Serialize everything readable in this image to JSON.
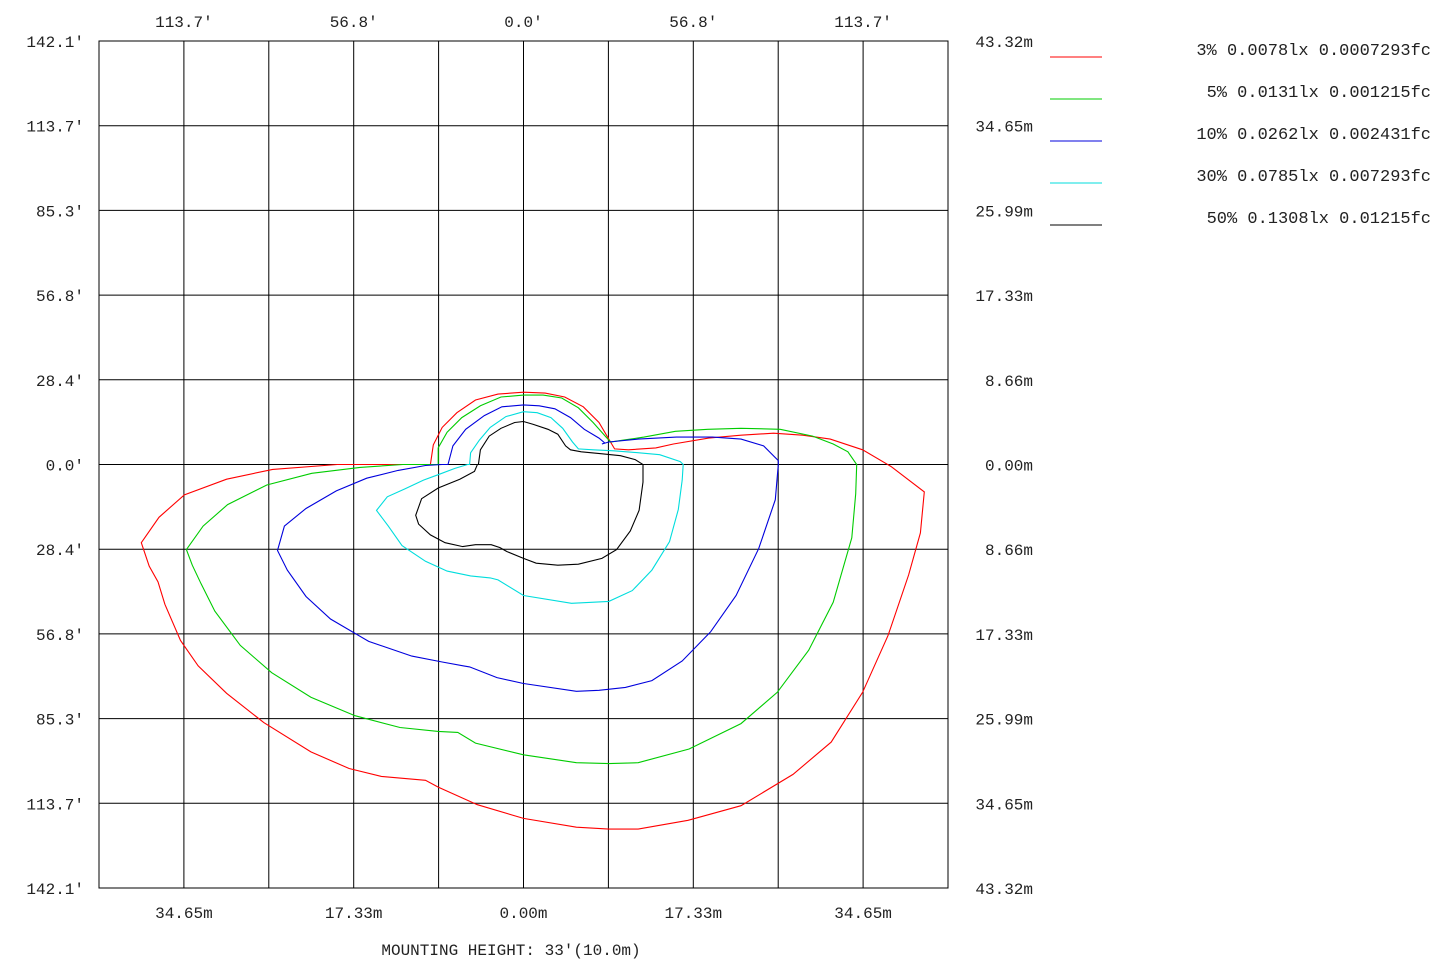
{
  "chart_data": {
    "type": "line",
    "title": "",
    "xlabel": "MOUNTING HEIGHT: 33'(10.0m)",
    "ylabel": "",
    "x_unit": "m",
    "y_unit": "m",
    "xlim": [
      -43.32,
      43.32
    ],
    "ylim": [
      -43.32,
      43.32
    ],
    "grid": true,
    "legend_position": "right",
    "axes": {
      "top_ticks_ft": [
        "113.7'",
        "56.8'",
        "0.0'",
        "56.8'",
        "113.7'"
      ],
      "bottom_ticks_m": [
        "34.65m",
        "17.33m",
        "0.00m",
        "17.33m",
        "34.65m"
      ],
      "left_ticks_ft": [
        "142.1'",
        "113.7'",
        "85.3'",
        "56.8'",
        "28.4'",
        "0.0'",
        "28.4'",
        "56.8'",
        "85.3'",
        "113.7'",
        "142.1'"
      ],
      "right_ticks_m": [
        "43.32m",
        "34.65m",
        "25.99m",
        "17.33m",
        "8.66m",
        "0.00m",
        "8.66m",
        "17.33m",
        "25.99m",
        "34.65m",
        "43.32m"
      ]
    },
    "series": [
      {
        "name": "3% 0.0078lx 0.0007293fc",
        "color": "#ff0000",
        "points": [
          [
            -9.5,
            0.0
          ],
          [
            -9.2,
            2.0
          ],
          [
            -8.3,
            3.8
          ],
          [
            -6.8,
            5.3
          ],
          [
            -4.9,
            6.6
          ],
          [
            -2.6,
            7.2
          ],
          [
            0.0,
            7.4
          ],
          [
            2.2,
            7.3
          ],
          [
            4.2,
            6.9
          ],
          [
            6.1,
            5.9
          ],
          [
            7.7,
            4.3
          ],
          [
            8.7,
            2.6
          ],
          [
            9.3,
            1.6
          ],
          [
            10.7,
            1.5
          ],
          [
            13.5,
            1.7
          ],
          [
            15.3,
            2.1
          ],
          [
            18.9,
            2.7
          ],
          [
            22.2,
            3.0
          ],
          [
            25.5,
            3.2
          ],
          [
            28.5,
            3.0
          ],
          [
            31.3,
            2.6
          ],
          [
            34.6,
            1.5
          ],
          [
            37.5,
            -0.2
          ],
          [
            40.9,
            -2.8
          ],
          [
            40.5,
            -7.0
          ],
          [
            39.3,
            -11.3
          ],
          [
            37.2,
            -17.5
          ],
          [
            34.6,
            -23.3
          ],
          [
            31.4,
            -28.4
          ],
          [
            27.5,
            -31.7
          ],
          [
            22.2,
            -34.9
          ],
          [
            16.8,
            -36.4
          ],
          [
            11.7,
            -37.3
          ],
          [
            8.7,
            -37.3
          ],
          [
            5.4,
            -37.1
          ],
          [
            0.0,
            -36.2
          ],
          [
            -4.7,
            -34.8
          ],
          [
            -8.7,
            -33.0
          ],
          [
            -10.0,
            -32.3
          ],
          [
            -14.5,
            -31.9
          ],
          [
            -17.8,
            -31.1
          ],
          [
            -21.7,
            -29.4
          ],
          [
            -26.5,
            -26.4
          ],
          [
            -30.3,
            -23.4
          ],
          [
            -33.2,
            -20.6
          ],
          [
            -35.0,
            -18.0
          ],
          [
            -36.6,
            -14.3
          ],
          [
            -37.3,
            -12.0
          ],
          [
            -38.2,
            -10.4
          ],
          [
            -39.0,
            -8.0
          ],
          [
            -39.0,
            -8.0
          ],
          [
            -37.2,
            -5.4
          ],
          [
            -34.6,
            -3.1
          ],
          [
            -30.3,
            -1.5
          ],
          [
            -25.6,
            -0.5
          ],
          [
            -19.0,
            0.0
          ],
          [
            -13.0,
            0.0
          ]
        ]
      },
      {
        "name": "5% 0.0131lx 0.001215fc",
        "color": "#00cc00",
        "points": [
          [
            -8.7,
            0.0
          ],
          [
            -8.7,
            1.7
          ],
          [
            -7.8,
            3.3
          ],
          [
            -6.3,
            4.8
          ],
          [
            -4.4,
            6.0
          ],
          [
            -2.3,
            6.9
          ],
          [
            0.0,
            7.1
          ],
          [
            2.0,
            7.1
          ],
          [
            3.9,
            6.8
          ],
          [
            5.6,
            5.8
          ],
          [
            7.1,
            4.3
          ],
          [
            8.7,
            2.5
          ],
          [
            8.9,
            2.3
          ],
          [
            10.2,
            2.5
          ],
          [
            12.3,
            2.8
          ],
          [
            15.5,
            3.4
          ],
          [
            18.8,
            3.6
          ],
          [
            22.2,
            3.7
          ],
          [
            26.2,
            3.6
          ],
          [
            29.5,
            2.9
          ],
          [
            31.6,
            2.1
          ],
          [
            33.1,
            1.3
          ],
          [
            34.0,
            0.0
          ],
          [
            33.9,
            -3.0
          ],
          [
            33.5,
            -7.5
          ],
          [
            31.6,
            -14.1
          ],
          [
            29.1,
            -19.0
          ],
          [
            25.9,
            -23.3
          ],
          [
            22.2,
            -26.5
          ],
          [
            16.9,
            -29.1
          ],
          [
            11.7,
            -30.5
          ],
          [
            8.7,
            -30.6
          ],
          [
            5.4,
            -30.5
          ],
          [
            0.0,
            -29.7
          ],
          [
            -4.9,
            -28.5
          ],
          [
            -6.7,
            -27.4
          ],
          [
            -8.7,
            -27.3
          ],
          [
            -12.6,
            -26.9
          ],
          [
            -17.2,
            -25.7
          ],
          [
            -21.7,
            -23.8
          ],
          [
            -25.7,
            -21.3
          ],
          [
            -28.9,
            -18.5
          ],
          [
            -31.5,
            -15.0
          ],
          [
            -32.9,
            -12.2
          ],
          [
            -33.8,
            -10.3
          ],
          [
            -34.4,
            -8.7
          ],
          [
            -32.7,
            -6.3
          ],
          [
            -30.2,
            -4.1
          ],
          [
            -26.2,
            -2.1
          ],
          [
            -21.6,
            -0.9
          ],
          [
            -16.7,
            -0.3
          ],
          [
            -12.3,
            0.0
          ]
        ]
      },
      {
        "name": "10% 0.0262lx 0.002431fc",
        "color": "#0000dd",
        "points": [
          [
            -7.7,
            0.0
          ],
          [
            -7.2,
            1.9
          ],
          [
            -5.9,
            3.6
          ],
          [
            -4.0,
            5.0
          ],
          [
            -2.2,
            5.9
          ],
          [
            0.0,
            6.1
          ],
          [
            1.6,
            6.0
          ],
          [
            3.2,
            5.7
          ],
          [
            4.8,
            4.8
          ],
          [
            6.2,
            3.6
          ],
          [
            7.7,
            2.7
          ],
          [
            8.3,
            2.2
          ],
          [
            8.0,
            2.1
          ],
          [
            8.7,
            2.3
          ],
          [
            11.7,
            2.6
          ],
          [
            15.6,
            2.8
          ],
          [
            19.3,
            2.8
          ],
          [
            22.2,
            2.6
          ],
          [
            24.5,
            1.9
          ],
          [
            26.0,
            0.4
          ],
          [
            26.0,
            0.0
          ],
          [
            25.7,
            -3.6
          ],
          [
            24.0,
            -8.6
          ],
          [
            21.7,
            -13.4
          ],
          [
            19.1,
            -17.1
          ],
          [
            16.2,
            -20.1
          ],
          [
            13.1,
            -22.1
          ],
          [
            10.4,
            -22.8
          ],
          [
            7.7,
            -23.1
          ],
          [
            5.4,
            -23.2
          ],
          [
            0.0,
            -22.4
          ],
          [
            -2.7,
            -21.8
          ],
          [
            -5.5,
            -20.7
          ],
          [
            -6.1,
            -20.6
          ],
          [
            -8.3,
            -20.2
          ],
          [
            -11.4,
            -19.6
          ],
          [
            -15.8,
            -18.1
          ],
          [
            -19.7,
            -15.8
          ],
          [
            -22.2,
            -13.5
          ],
          [
            -24.1,
            -10.8
          ],
          [
            -25.1,
            -8.8
          ],
          [
            -24.4,
            -6.3
          ],
          [
            -22.2,
            -4.5
          ],
          [
            -19.1,
            -2.7
          ],
          [
            -16.0,
            -1.4
          ],
          [
            -12.8,
            -0.6
          ],
          [
            -10.0,
            -0.1
          ],
          [
            -8.3,
            0.0
          ]
        ]
      },
      {
        "name": "30% 0.0785lx 0.007293fc",
        "color": "#00dddd",
        "points": [
          [
            -5.5,
            0.0
          ],
          [
            -5.4,
            1.2
          ],
          [
            -4.5,
            2.5
          ],
          [
            -3.4,
            3.8
          ],
          [
            -1.8,
            4.9
          ],
          [
            0.0,
            5.4
          ],
          [
            1.4,
            5.3
          ],
          [
            2.8,
            4.8
          ],
          [
            4.0,
            3.7
          ],
          [
            5.0,
            2.3
          ],
          [
            5.6,
            1.6
          ],
          [
            7.1,
            1.5
          ],
          [
            9.2,
            1.4
          ],
          [
            11.8,
            1.2
          ],
          [
            13.9,
            1.0
          ],
          [
            16.0,
            0.3
          ],
          [
            16.3,
            0.0
          ],
          [
            16.2,
            -1.6
          ],
          [
            15.8,
            -4.6
          ],
          [
            14.9,
            -7.9
          ],
          [
            13.1,
            -10.8
          ],
          [
            11.1,
            -12.9
          ],
          [
            8.7,
            -14.0
          ],
          [
            4.9,
            -14.2
          ],
          [
            0.0,
            -13.4
          ],
          [
            -2.6,
            -11.8
          ],
          [
            -3.4,
            -11.6
          ],
          [
            -5.4,
            -11.4
          ],
          [
            -7.8,
            -10.9
          ],
          [
            -10.0,
            -9.9
          ],
          [
            -12.4,
            -8.3
          ],
          [
            -13.8,
            -6.3
          ],
          [
            -15.0,
            -4.7
          ],
          [
            -13.9,
            -3.3
          ],
          [
            -12.1,
            -2.5
          ],
          [
            -10.2,
            -1.6
          ],
          [
            -8.6,
            -1.0
          ],
          [
            -7.0,
            -0.4
          ],
          [
            -5.7,
            0.0
          ]
        ]
      },
      {
        "name": "50% 0.1308lx 0.01215fc",
        "color": "#000000",
        "points": [
          [
            -4.6,
            0.0
          ],
          [
            -4.4,
            1.5
          ],
          [
            -3.5,
            2.9
          ],
          [
            -2.3,
            3.7
          ],
          [
            -0.9,
            4.3
          ],
          [
            0.0,
            4.4
          ],
          [
            1.0,
            4.1
          ],
          [
            2.5,
            3.6
          ],
          [
            3.5,
            3.1
          ],
          [
            4.3,
            1.9
          ],
          [
            4.8,
            1.5
          ],
          [
            5.9,
            1.3
          ],
          [
            7.9,
            1.1
          ],
          [
            9.9,
            0.9
          ],
          [
            11.4,
            0.5
          ],
          [
            12.2,
            0.0
          ],
          [
            12.2,
            -1.8
          ],
          [
            11.8,
            -4.7
          ],
          [
            10.9,
            -6.8
          ],
          [
            9.5,
            -8.7
          ],
          [
            8.0,
            -9.6
          ],
          [
            5.6,
            -10.2
          ],
          [
            3.5,
            -10.3
          ],
          [
            1.3,
            -10.1
          ],
          [
            0.0,
            -9.6
          ],
          [
            -1.7,
            -8.9
          ],
          [
            -2.4,
            -8.5
          ],
          [
            -3.3,
            -8.2
          ],
          [
            -4.9,
            -8.2
          ],
          [
            -6.2,
            -8.4
          ],
          [
            -8.0,
            -8.0
          ],
          [
            -9.5,
            -7.2
          ],
          [
            -10.7,
            -6.1
          ],
          [
            -11.0,
            -5.2
          ],
          [
            -10.4,
            -3.5
          ],
          [
            -8.7,
            -2.4
          ],
          [
            -6.5,
            -1.5
          ],
          [
            -5.0,
            -0.7
          ],
          [
            -4.7,
            0.0
          ]
        ]
      }
    ]
  }
}
